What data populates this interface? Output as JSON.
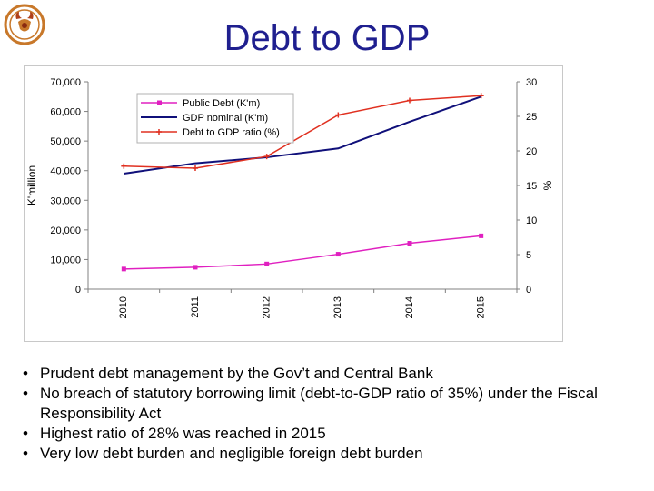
{
  "slide": {
    "title": "Debt to GDP",
    "bullets": [
      "Prudent debt management by the Gov’t and Central Bank",
      "No breach of statutory borrowing limit (debt-to-GDP ratio of 35%) under the Fiscal Responsibility Act",
      "Highest ratio of 28% was reached in 2015",
      "Very low debt burden and negligible foreign debt burden"
    ]
  },
  "logo": {
    "icon": "crest-logo-icon"
  },
  "chart_data": {
    "type": "line",
    "categories": [
      "2010",
      "2011",
      "2012",
      "2013",
      "2014",
      "2015"
    ],
    "ylabel": "K'million",
    "y2label": "%",
    "ylim": [
      0,
      70000
    ],
    "y2lim": [
      0,
      30
    ],
    "yticks": [
      "70,000",
      "60,000",
      "50,000",
      "40,000",
      "30,000",
      "20,000",
      "10,000",
      "0"
    ],
    "y2ticks": [
      "30",
      "25",
      "20",
      "15",
      "10",
      "5",
      "0"
    ],
    "legend_position": "top-left",
    "series": [
      {
        "name": "Public Debt (K'm)",
        "axis": "left",
        "color": "#e020c0",
        "marker": "square",
        "values": [
          6800,
          7400,
          8500,
          11800,
          15500,
          18000
        ]
      },
      {
        "name": "GDP nominal (K'm)",
        "axis": "left",
        "color": "#10107a",
        "marker": "none",
        "values": [
          39000,
          42500,
          44500,
          47500,
          56500,
          65000
        ]
      },
      {
        "name": "Debt to GDP ratio (%)",
        "axis": "right",
        "color": "#e03020",
        "marker": "cross",
        "values": [
          17.8,
          17.5,
          19.2,
          25.2,
          27.3,
          28.0
        ]
      }
    ]
  }
}
